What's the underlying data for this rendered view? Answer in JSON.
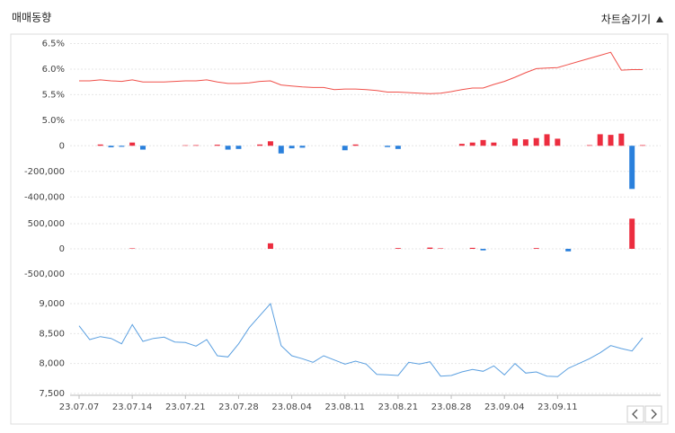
{
  "header": {
    "title": "매매동향",
    "toggle": "차트숨기기"
  },
  "chart_data": [
    {
      "type": "line",
      "color": "#f0504a",
      "values": [
        5.77,
        5.77,
        5.79,
        5.77,
        5.76,
        5.79,
        5.75,
        5.75,
        5.75,
        5.76,
        5.77,
        5.77,
        5.79,
        5.75,
        5.72,
        5.72,
        5.73,
        5.76,
        5.77,
        5.69,
        5.67,
        5.65,
        5.64,
        5.64,
        5.6,
        5.61,
        5.61,
        5.6,
        5.58,
        5.55,
        5.55,
        5.54,
        5.53,
        5.52,
        5.53,
        5.56,
        5.6,
        5.63,
        5.63,
        5.7,
        5.76,
        5.84,
        5.93,
        6.01,
        6.02,
        6.03,
        6.09,
        6.15,
        6.21,
        6.27,
        6.33,
        5.98,
        5.99,
        5.99
      ],
      "ylim": [
        4.75,
        6.65
      ],
      "yticks": [
        {
          "value": 5.0,
          "label": "5.0%"
        },
        {
          "value": 5.5,
          "label": "5.5%"
        },
        {
          "value": 6.0,
          "label": "6.0%"
        },
        {
          "value": 6.5,
          "label": "6.5%"
        }
      ],
      "grid": true
    },
    {
      "type": "bar",
      "colors": {
        "positive": "#ec2d3f",
        "negative": "#2a80dc"
      },
      "values": [
        0,
        0,
        10000,
        -12000,
        -8000,
        25000,
        -30000,
        0,
        0,
        0,
        4000,
        5000,
        0,
        8000,
        -30000,
        -25000,
        0,
        10000,
        35000,
        -60000,
        -20000,
        -15000,
        0,
        0,
        0,
        -35000,
        10000,
        0,
        0,
        -10000,
        -25000,
        0,
        0,
        0,
        0,
        0,
        15000,
        25000,
        45000,
        25000,
        0,
        55000,
        50000,
        60000,
        90000,
        55000,
        0,
        0,
        5000,
        90000,
        85000,
        95000,
        -337000,
        5000
      ],
      "ylim": [
        -440000,
        100000
      ],
      "yticks": [
        {
          "value": -400000,
          "label": "-400,000"
        },
        {
          "value": -200000,
          "label": "-200,000"
        },
        0
      ],
      "grid": true
    },
    {
      "type": "bar",
      "colors": {
        "positive": "#ec2d3f",
        "negative": "#2a80dc"
      },
      "values": [
        0,
        0,
        0,
        0,
        0,
        10000,
        0,
        0,
        0,
        0,
        0,
        0,
        0,
        0,
        0,
        0,
        0,
        0,
        110000,
        0,
        0,
        0,
        0,
        0,
        0,
        0,
        0,
        0,
        0,
        0,
        15000,
        0,
        0,
        25000,
        10000,
        0,
        0,
        20000,
        -30000,
        0,
        0,
        0,
        0,
        15000,
        0,
        0,
        -50000,
        0,
        0,
        0,
        0,
        0,
        600000,
        0
      ],
      "ylim": [
        -625000,
        750000
      ],
      "yticks": [
        {
          "value": -500000,
          "label": "-500,000"
        },
        0,
        {
          "value": 500000,
          "label": "500,000"
        }
      ],
      "grid": true
    },
    {
      "type": "line",
      "color": "#5a9fe0",
      "categories": [
        "23.07.07",
        null,
        null,
        null,
        null,
        "23.07.14",
        null,
        null,
        null,
        null,
        "23.07.21",
        null,
        null,
        null,
        null,
        "23.07.28",
        null,
        null,
        null,
        null,
        "23.08.04",
        null,
        null,
        null,
        null,
        "23.08.11",
        null,
        null,
        null,
        null,
        "23.08.21",
        null,
        null,
        null,
        null,
        "23.08.28",
        null,
        null,
        null,
        null,
        "23.09.04",
        null,
        null,
        null,
        null,
        "23.09.11",
        null,
        null,
        null,
        null,
        null,
        null,
        null,
        null
      ],
      "values": [
        8630,
        8400,
        8450,
        8420,
        8330,
        8650,
        8370,
        8420,
        8440,
        8360,
        8350,
        8290,
        8400,
        8130,
        8110,
        8330,
        8600,
        8800,
        9000,
        8300,
        8130,
        8080,
        8020,
        8130,
        8060,
        7990,
        8040,
        7990,
        7820,
        7810,
        7800,
        8020,
        7990,
        8030,
        7790,
        7800,
        7860,
        7900,
        7870,
        7960,
        7810,
        8000,
        7840,
        7860,
        7790,
        7780,
        7920,
        8000,
        8080,
        8180,
        8300,
        8250,
        8210,
        8430
      ],
      "ylim": [
        7470,
        9195
      ],
      "yticks": [
        {
          "value": 7500,
          "label": "7,500"
        },
        {
          "value": 8000,
          "label": "8,000"
        },
        {
          "value": 8500,
          "label": "8,500"
        },
        {
          "value": 9000,
          "label": "9,000"
        }
      ],
      "grid": true
    }
  ]
}
